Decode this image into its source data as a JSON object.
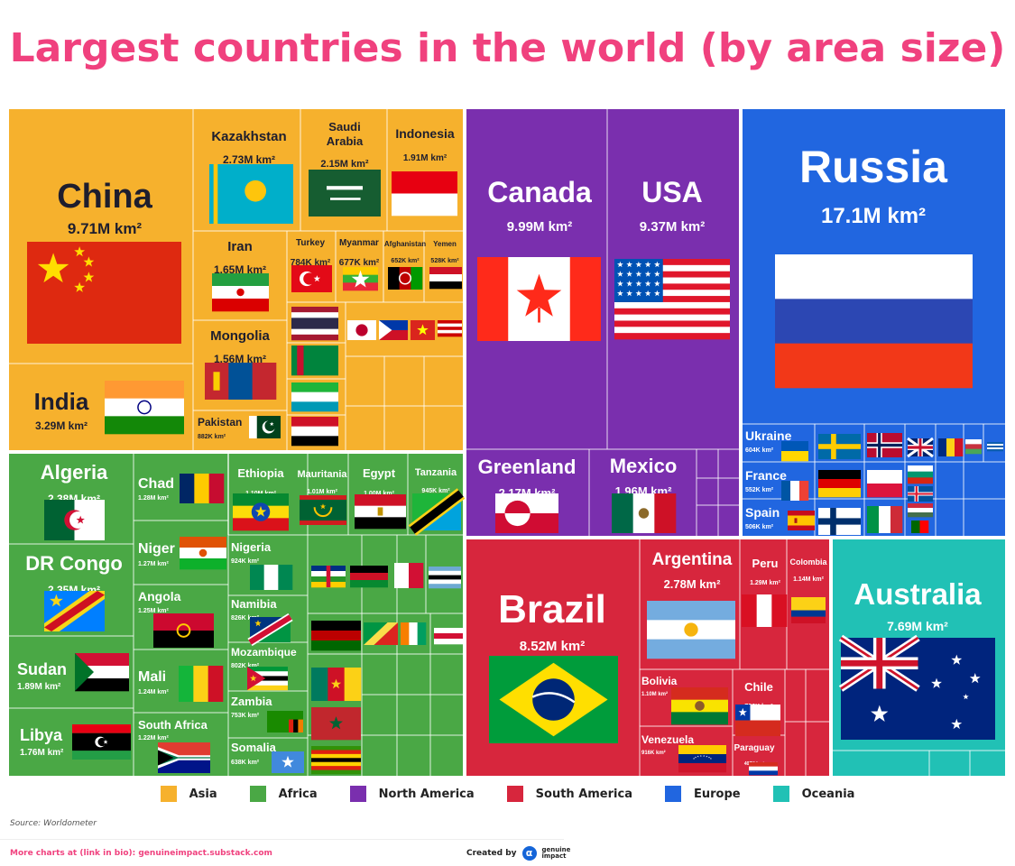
{
  "title": "Largest countries in the world (by area size)",
  "colors": {
    "title": "#f0417e",
    "Asia": "#f6b12d",
    "Africa": "#4aa845",
    "North America": "#7a2fae",
    "South America": "#d7263d",
    "Europe": "#2166e0",
    "Oceania": "#21c1b5"
  },
  "legend": [
    {
      "label": "Asia",
      "color_key": "Asia"
    },
    {
      "label": "Africa",
      "color_key": "Africa"
    },
    {
      "label": "North America",
      "color_key": "North America"
    },
    {
      "label": "South America",
      "color_key": "South America"
    },
    {
      "label": "Europe",
      "color_key": "Europe"
    },
    {
      "label": "Oceania",
      "color_key": "Oceania"
    }
  ],
  "footer": {
    "source": "Source: Worldometer",
    "more": "More charts at (link in bio): genuineimpact.substack.com",
    "created_by": "Created by",
    "brand": "genuine impact",
    "brand_icon": "genuine-impact-logo-icon"
  },
  "chart_data": {
    "type": "treemap",
    "unit": "km²",
    "countries": [
      {
        "name": "China",
        "area_label": "9.71M km²",
        "region": "Asia",
        "flag_icon": "china-flag-icon"
      },
      {
        "name": "India",
        "area_label": "3.29M km²",
        "region": "Asia",
        "flag_icon": "india-flag-icon"
      },
      {
        "name": "Kazakhstan",
        "area_label": "2.73M km²",
        "region": "Asia",
        "flag_icon": "kazakhstan-flag-icon"
      },
      {
        "name": "Saudi Arabia",
        "area_label": "2.15M km²",
        "region": "Asia",
        "flag_icon": "saudi-arabia-flag-icon"
      },
      {
        "name": "Indonesia",
        "area_label": "1.91M km²",
        "region": "Asia",
        "flag_icon": "indonesia-flag-icon"
      },
      {
        "name": "Iran",
        "area_label": "1.65M km²",
        "region": "Asia",
        "flag_icon": "iran-flag-icon"
      },
      {
        "name": "Turkey",
        "area_label": "784K km²",
        "region": "Asia",
        "flag_icon": "turkey-flag-icon"
      },
      {
        "name": "Myanmar",
        "area_label": "677K km²",
        "region": "Asia",
        "flag_icon": "myanmar-flag-icon"
      },
      {
        "name": "Afghanistan",
        "area_label": "652K km²",
        "region": "Asia",
        "flag_icon": "afghanistan-flag-icon"
      },
      {
        "name": "Yemen",
        "area_label": "528K km²",
        "region": "Asia",
        "flag_icon": "yemen-flag-icon"
      },
      {
        "name": "Mongolia",
        "area_label": "1.56M km²",
        "region": "Asia",
        "flag_icon": "mongolia-flag-icon"
      },
      {
        "name": "Pakistan",
        "area_label": "882K km²",
        "region": "Asia",
        "flag_icon": "pakistan-flag-icon"
      },
      {
        "name": "Canada",
        "area_label": "9.99M km²",
        "region": "North America",
        "flag_icon": "canada-flag-icon"
      },
      {
        "name": "USA",
        "area_label": "9.37M km²",
        "region": "North America",
        "flag_icon": "usa-flag-icon"
      },
      {
        "name": "Greenland",
        "area_label": "2.17M km²",
        "region": "North America",
        "flag_icon": "greenland-flag-icon"
      },
      {
        "name": "Mexico",
        "area_label": "1.96M km²",
        "region": "North America",
        "flag_icon": "mexico-flag-icon"
      },
      {
        "name": "Russia",
        "area_label": "17.1M km²",
        "region": "Europe",
        "flag_icon": "russia-flag-icon"
      },
      {
        "name": "Ukraine",
        "area_label": "604K km²",
        "region": "Europe",
        "flag_icon": "ukraine-flag-icon"
      },
      {
        "name": "France",
        "area_label": "552K km²",
        "region": "Europe",
        "flag_icon": "france-flag-icon"
      },
      {
        "name": "Spain",
        "area_label": "506K km²",
        "region": "Europe",
        "flag_icon": "spain-flag-icon"
      },
      {
        "name": "Algeria",
        "area_label": "2.38M km²",
        "region": "Africa",
        "flag_icon": "algeria-flag-icon"
      },
      {
        "name": "DR Congo",
        "area_label": "2.35M km²",
        "region": "Africa",
        "flag_icon": "dr-congo-flag-icon"
      },
      {
        "name": "Sudan",
        "area_label": "1.89M km²",
        "region": "Africa",
        "flag_icon": "sudan-flag-icon"
      },
      {
        "name": "Libya",
        "area_label": "1.76M km²",
        "region": "Africa",
        "flag_icon": "libya-flag-icon"
      },
      {
        "name": "Chad",
        "area_label": "1.28M km²",
        "region": "Africa",
        "flag_icon": "chad-flag-icon"
      },
      {
        "name": "Niger",
        "area_label": "1.27M km²",
        "region": "Africa",
        "flag_icon": "niger-flag-icon"
      },
      {
        "name": "Angola",
        "area_label": "1.25M km²",
        "region": "Africa",
        "flag_icon": "angola-flag-icon"
      },
      {
        "name": "Mali",
        "area_label": "1.24M km²",
        "region": "Africa",
        "flag_icon": "mali-flag-icon"
      },
      {
        "name": "South Africa",
        "area_label": "1.22M km²",
        "region": "Africa",
        "flag_icon": "south-africa-flag-icon"
      },
      {
        "name": "Ethiopia",
        "area_label": "1.10M km²",
        "region": "Africa",
        "flag_icon": "ethiopia-flag-icon"
      },
      {
        "name": "Mauritania",
        "area_label": "1.01M km²",
        "region": "Africa",
        "flag_icon": "mauritania-flag-icon"
      },
      {
        "name": "Egypt",
        "area_label": "1.00M km²",
        "region": "Africa",
        "flag_icon": "egypt-flag-icon"
      },
      {
        "name": "Tanzania",
        "area_label": "945K km²",
        "region": "Africa",
        "flag_icon": "tanzania-flag-icon"
      },
      {
        "name": "Nigeria",
        "area_label": "924K km²",
        "region": "Africa",
        "flag_icon": "nigeria-flag-icon"
      },
      {
        "name": "Namibia",
        "area_label": "826K km²",
        "region": "Africa",
        "flag_icon": "namibia-flag-icon"
      },
      {
        "name": "Mozambique",
        "area_label": "802K km²",
        "region": "Africa",
        "flag_icon": "mozambique-flag-icon"
      },
      {
        "name": "Zambia",
        "area_label": "753K km²",
        "region": "Africa",
        "flag_icon": "zambia-flag-icon"
      },
      {
        "name": "Somalia",
        "area_label": "638K km²",
        "region": "Africa",
        "flag_icon": "somalia-flag-icon"
      },
      {
        "name": "Brazil",
        "area_label": "8.52M km²",
        "region": "South America",
        "flag_icon": "brazil-flag-icon"
      },
      {
        "name": "Argentina",
        "area_label": "2.78M km²",
        "region": "South America",
        "flag_icon": "argentina-flag-icon"
      },
      {
        "name": "Peru",
        "area_label": "1.29M km²",
        "region": "South America",
        "flag_icon": "peru-flag-icon"
      },
      {
        "name": "Colombia",
        "area_label": "1.14M km²",
        "region": "South America",
        "flag_icon": "colombia-flag-icon"
      },
      {
        "name": "Bolivia",
        "area_label": "1.10M km²",
        "region": "South America",
        "flag_icon": "bolivia-flag-icon"
      },
      {
        "name": "Chile",
        "area_label": "756K km²",
        "region": "South America",
        "flag_icon": "chile-flag-icon"
      },
      {
        "name": "Venezuela",
        "area_label": "916K km²",
        "region": "South America",
        "flag_icon": "venezuela-flag-icon"
      },
      {
        "name": "Paraguay",
        "area_label": "407K km²",
        "region": "South America",
        "flag_icon": "paraguay-flag-icon"
      },
      {
        "name": "Australia",
        "area_label": "7.69M km²",
        "region": "Oceania",
        "flag_icon": "australia-flag-icon"
      }
    ]
  }
}
